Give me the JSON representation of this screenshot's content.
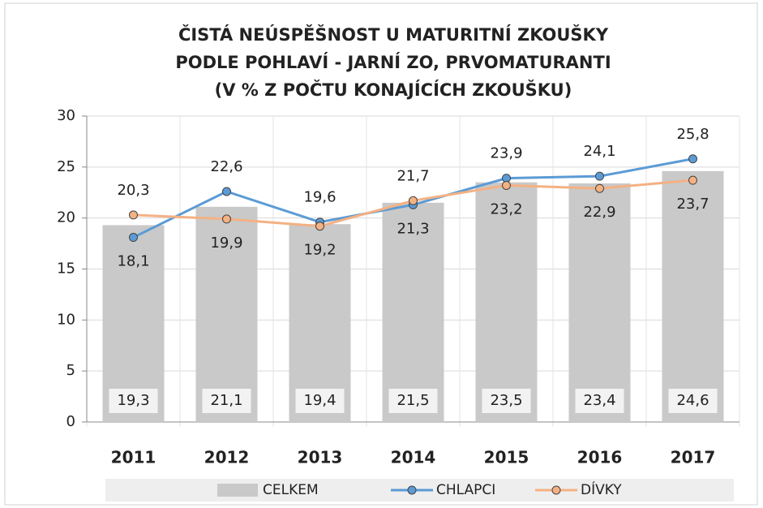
{
  "chart_data": {
    "type": "combo",
    "title": [
      "ČISTÁ NEÚSPĚŠNOST U MATURITNÍ ZKOUŠKY",
      "PODLE POHLAVÍ - JARNÍ ZO, PRVOMATURANTI",
      "(V % Z POČTU KONAJÍCÍCH ZKOUŠKU)"
    ],
    "categories": [
      "2011",
      "2012",
      "2013",
      "2014",
      "2015",
      "2016",
      "2017"
    ],
    "series": [
      {
        "name": "CELKEM",
        "type": "bar",
        "color": "#c9c9c9",
        "values": [
          19.3,
          21.1,
          19.4,
          21.5,
          23.5,
          23.4,
          24.6
        ],
        "value_labels": [
          "19,3",
          "21,1",
          "19,4",
          "21,5",
          "23,5",
          "23,4",
          "24,6"
        ]
      },
      {
        "name": "CHLAPCI",
        "type": "line",
        "color": "#5b9bd5",
        "values": [
          18.1,
          22.6,
          19.6,
          21.3,
          23.9,
          24.1,
          25.8
        ],
        "value_labels": [
          "18,1",
          "22,6",
          "19,6",
          "21,3",
          "23,9",
          "24,1",
          "25,8"
        ]
      },
      {
        "name": "DÍVKY",
        "type": "line",
        "color": "#f4b183",
        "values": [
          20.3,
          19.9,
          19.2,
          21.7,
          23.2,
          22.9,
          23.7
        ],
        "value_labels": [
          "20,3",
          "19,9",
          "19,2",
          "21,7",
          "23,2",
          "22,9",
          "23,7"
        ]
      }
    ],
    "ylim": [
      0,
      30
    ],
    "yticks": [
      0,
      5,
      10,
      15,
      20,
      25,
      30
    ],
    "grid": true,
    "legend": "bottom"
  }
}
